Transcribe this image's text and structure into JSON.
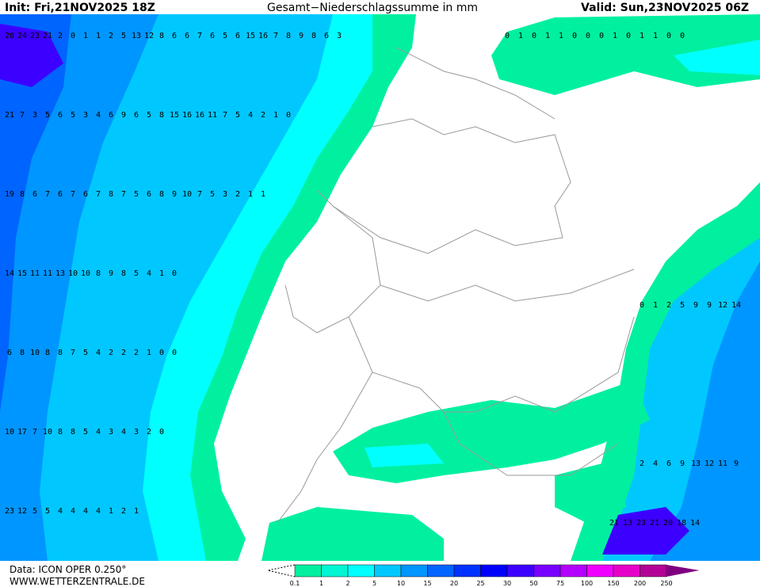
{
  "header": {
    "init": "Init: Fri,21NOV2025 18Z",
    "title": "Gesamt−Niederschlagssumme in mm",
    "valid": "Valid: Sun,23NOV2025 06Z"
  },
  "footer": {
    "data": "Data: ICON OPER 0.250°",
    "site": "WWW.WETTERZENTRALE.DE"
  },
  "legend": [
    {
      "label": "0.1",
      "color": "#00f0a0"
    },
    {
      "label": "1",
      "color": "#00f5d2"
    },
    {
      "label": "2",
      "color": "#00ffff"
    },
    {
      "label": "5",
      "color": "#00c8ff"
    },
    {
      "label": "10",
      "color": "#0096ff"
    },
    {
      "label": "15",
      "color": "#0064ff"
    },
    {
      "label": "20",
      "color": "#0032ff"
    },
    {
      "label": "25",
      "color": "#0000ff"
    },
    {
      "label": "30",
      "color": "#3c00ff"
    },
    {
      "label": "50",
      "color": "#7800ff"
    },
    {
      "label": "75",
      "color": "#b400ff"
    },
    {
      "label": "100",
      "color": "#f000ff"
    },
    {
      "label": "150",
      "color": "#e600c8"
    },
    {
      "label": "200",
      "color": "#b40096"
    },
    {
      "label": "250",
      "color": "#800080"
    }
  ],
  "grid_rows": [
    [
      20,
      24,
      23,
      21,
      2,
      0,
      1,
      1,
      2,
      5,
      13,
      12,
      8,
      6,
      6,
      7,
      6,
      5,
      6,
      15,
      16,
      7,
      8,
      9,
      8,
      6,
      3
    ],
    [
      21,
      7,
      3,
      5,
      6,
      5,
      3,
      4,
      6,
      9,
      6,
      5,
      8,
      15,
      16,
      16,
      11,
      7,
      5,
      4,
      2,
      1,
      0
    ],
    [
      19,
      8,
      6,
      7,
      6,
      7,
      6,
      7,
      8,
      7,
      5,
      6,
      8,
      9,
      10,
      7,
      5,
      3,
      2,
      1,
      1
    ],
    [
      14,
      15,
      11,
      11,
      13,
      10,
      10,
      8,
      9,
      8,
      5,
      4,
      1,
      0
    ],
    [
      6,
      8,
      10,
      8,
      8,
      7,
      5,
      4,
      2,
      2,
      2,
      1,
      0,
      0
    ],
    [
      10,
      17,
      7,
      10,
      8,
      8,
      5,
      4,
      3,
      4,
      3,
      2,
      0
    ],
    [
      23,
      12,
      5,
      5,
      4,
      4,
      4,
      4,
      1,
      2,
      1
    ],
    [
      0,
      1,
      0,
      1,
      1,
      0,
      0,
      0,
      1,
      0,
      1,
      1,
      0,
      0
    ],
    [
      0,
      1,
      2,
      5,
      9,
      9,
      12,
      14
    ],
    [
      2,
      4,
      6,
      9,
      13,
      12,
      11,
      9
    ],
    [
      21,
      13,
      23,
      21,
      20,
      18,
      14
    ]
  ]
}
